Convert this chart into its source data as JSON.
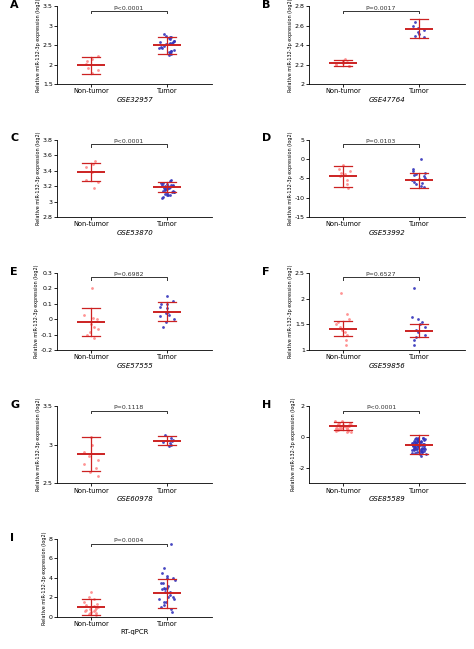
{
  "panels": [
    {
      "label": "A",
      "dataset": "GSE32957",
      "pvalue": "P<0.0001",
      "xlabel_left": "Non-tumor",
      "xlabel_right": "Tumor",
      "ylabel": "Relative miR-132-3p expression (log2)",
      "ylim": [
        1.5,
        3.5
      ],
      "yticks": [
        1.5,
        2.0,
        2.5,
        3.0,
        3.5
      ],
      "non_tumor_mean": 1.98,
      "non_tumor_sd": 0.22,
      "tumor_mean": 2.5,
      "tumor_sd": 0.22,
      "non_tumor_pts": [
        1.85,
        1.92,
        2.02,
        2.08,
        2.15,
        1.78,
        2.22
      ],
      "tumor_pts": [
        2.25,
        2.28,
        2.32,
        2.35,
        2.38,
        2.42,
        2.45,
        2.48,
        2.52,
        2.55,
        2.58,
        2.62,
        2.65,
        2.68,
        2.72,
        2.75,
        2.78,
        2.52,
        2.3,
        2.6,
        2.55,
        2.7,
        2.42,
        2.58,
        2.35
      ]
    },
    {
      "label": "B",
      "dataset": "GSE47764",
      "pvalue": "P=0.0017",
      "xlabel_left": "Non-tumor",
      "xlabel_right": "Tumor",
      "ylabel": "Relative miR-132-3p expression (log2)",
      "ylim": [
        2.0,
        2.8
      ],
      "yticks": [
        2.0,
        2.2,
        2.4,
        2.6,
        2.8
      ],
      "non_tumor_mean": 2.22,
      "non_tumor_sd": 0.03,
      "tumor_mean": 2.57,
      "tumor_sd": 0.1,
      "non_tumor_pts": [
        2.18,
        2.2,
        2.22,
        2.24,
        2.26,
        2.21,
        2.19,
        2.23
      ],
      "tumor_pts": [
        2.48,
        2.52,
        2.56,
        2.6,
        2.64,
        2.5,
        2.58,
        2.54
      ]
    },
    {
      "label": "C",
      "dataset": "GSE53870",
      "pvalue": "P<0.0001",
      "xlabel_left": "Non-tumor",
      "xlabel_right": "Tumor",
      "ylabel": "Relative miR-132-3p expression (log2)",
      "ylim": [
        2.8,
        3.8
      ],
      "yticks": [
        2.8,
        3.0,
        3.2,
        3.4,
        3.6,
        3.8
      ],
      "non_tumor_mean": 3.38,
      "non_tumor_sd": 0.12,
      "tumor_mean": 3.19,
      "tumor_sd": 0.06,
      "non_tumor_pts": [
        3.18,
        3.28,
        3.38,
        3.45,
        3.52,
        3.25,
        3.48
      ],
      "tumor_pts": [
        3.05,
        3.08,
        3.1,
        3.12,
        3.14,
        3.16,
        3.18,
        3.2,
        3.22,
        3.24,
        3.26,
        3.28,
        3.09,
        3.13,
        3.17,
        3.21,
        3.11,
        3.15,
        3.19,
        3.23,
        3.06,
        3.14,
        3.22,
        3.16,
        3.2,
        3.12,
        3.18,
        3.24,
        3.08,
        3.2
      ]
    },
    {
      "label": "D",
      "dataset": "GSE53992",
      "pvalue": "P=0.0103",
      "xlabel_left": "Non-tumor",
      "xlabel_right": "Tumor",
      "ylabel": "Relative miR-132-3p expression (log2)",
      "ylim": [
        -15,
        5
      ],
      "yticks": [
        -15,
        -10,
        -5,
        0,
        5
      ],
      "non_tumor_mean": -4.5,
      "non_tumor_sd": 2.8,
      "tumor_mean": -5.5,
      "tumor_sd": 2.0,
      "non_tumor_pts": [
        -1.5,
        -2.5,
        -3.5,
        -4.0,
        -4.5,
        -5.5,
        -6.5,
        -7.5,
        -3.0
      ],
      "tumor_pts": [
        -2.5,
        -3.5,
        -4.0,
        -4.5,
        -5.0,
        -5.5,
        -6.0,
        -6.5,
        -7.0,
        -3.0,
        -4.2,
        -5.2,
        -6.2,
        -7.2,
        0.0
      ]
    },
    {
      "label": "E",
      "dataset": "GSE57555",
      "pvalue": "P=0.6982",
      "xlabel_left": "Non-tumor",
      "xlabel_right": "Tumor",
      "ylabel": "Relative miR-132-3p expression (log2)",
      "ylim": [
        -0.2,
        0.3
      ],
      "yticks": [
        -0.2,
        -0.1,
        0.0,
        0.1,
        0.2,
        0.3
      ],
      "non_tumor_mean": -0.02,
      "non_tumor_sd": 0.09,
      "tumor_mean": 0.05,
      "tumor_sd": 0.06,
      "non_tumor_pts": [
        0.2,
        -0.05,
        -0.1,
        0.0,
        -0.08,
        0.03,
        -0.06,
        0.01,
        -0.03,
        -0.12
      ],
      "tumor_pts": [
        0.15,
        0.12,
        0.1,
        0.08,
        0.05,
        0.03,
        0.0,
        -0.02,
        -0.05,
        0.1,
        0.07,
        0.04,
        0.02
      ]
    },
    {
      "label": "F",
      "dataset": "GSE59856",
      "pvalue": "P=0.6527",
      "xlabel_left": "Non-tumor",
      "xlabel_right": "Tumor",
      "ylabel": "Relative miR-132-3p expression (log2)",
      "ylim": [
        1.0,
        2.5
      ],
      "yticks": [
        1.0,
        1.5,
        2.0,
        2.5
      ],
      "non_tumor_mean": 1.42,
      "non_tumor_sd": 0.15,
      "tumor_mean": 1.38,
      "tumor_sd": 0.12,
      "non_tumor_pts": [
        1.1,
        1.2,
        1.3,
        1.4,
        1.5,
        1.6,
        1.7,
        1.55,
        1.45,
        1.35,
        2.1
      ],
      "tumor_pts": [
        1.1,
        1.2,
        1.3,
        1.4,
        1.5,
        1.6,
        1.35,
        1.45,
        1.55,
        1.25,
        1.65,
        2.2
      ]
    },
    {
      "label": "G",
      "dataset": "GSE60978",
      "pvalue": "P=0.1118",
      "xlabel_left": "Non-tumor",
      "xlabel_right": "Tumor",
      "ylabel": "Relative miR-132-3p expression (log2)",
      "ylim": [
        2.5,
        3.5
      ],
      "yticks": [
        2.5,
        3.0,
        3.5
      ],
      "non_tumor_mean": 2.88,
      "non_tumor_sd": 0.22,
      "tumor_mean": 3.05,
      "tumor_sd": 0.06,
      "non_tumor_pts": [
        2.6,
        2.7,
        2.8,
        2.9,
        3.0,
        3.1,
        2.75,
        2.85,
        2.65
      ],
      "tumor_pts": [
        2.98,
        3.02,
        3.05,
        3.08,
        3.12,
        3.0,
        3.06,
        3.03
      ]
    },
    {
      "label": "H",
      "dataset": "GSE85589",
      "pvalue": "P<0.0001",
      "xlabel_left": "Non-tumor",
      "xlabel_right": "Tumor",
      "ylabel": "Relative miR-132-3p expression (log2)",
      "ylim": [
        -3,
        2
      ],
      "yticks": [
        -2,
        0,
        2
      ],
      "non_tumor_mean": 0.7,
      "non_tumor_sd": 0.28,
      "tumor_mean": -0.5,
      "tumor_sd": 0.6,
      "non_tumor_pts": [
        0.3,
        0.4,
        0.5,
        0.6,
        0.7,
        0.8,
        0.9,
        1.0,
        0.55,
        0.65,
        0.75,
        0.85,
        0.45,
        0.35,
        0.55,
        0.65,
        0.75,
        0.5,
        0.6,
        0.7,
        0.8,
        0.4,
        0.6,
        0.8,
        0.9,
        1.0,
        0.5,
        0.7,
        0.45,
        0.55
      ],
      "tumor_pts": [
        -0.1,
        -0.2,
        -0.3,
        -0.4,
        -0.5,
        -0.6,
        -0.7,
        -0.8,
        -0.9,
        -1.0,
        -1.1,
        -1.2,
        -0.15,
        -0.35,
        -0.55,
        -0.75,
        -0.95,
        -0.25,
        -0.45,
        -0.65,
        -0.85,
        -0.05,
        -0.3,
        -0.6,
        -0.9,
        -0.2,
        -0.5,
        -0.8,
        -0.4,
        -0.7,
        -0.15,
        -0.55,
        -0.85,
        -1.05,
        -0.35,
        -0.65,
        -0.25,
        -0.75,
        -0.45,
        -0.95,
        -0.1,
        -0.5,
        -0.8,
        -1.1,
        -0.3,
        -0.7,
        -0.2,
        -0.6,
        -0.4,
        -1.0,
        -0.15,
        -0.45,
        -0.75,
        -1.05,
        -0.35,
        -0.65,
        -0.25,
        -0.55,
        -0.85,
        -0.05
      ]
    },
    {
      "label": "I",
      "dataset": "RT-qPCR",
      "pvalue": "P=0.0004",
      "xlabel_left": "Non-tumor",
      "xlabel_right": "Tumor",
      "ylabel": "Relative miR-132-3p expression (log2)",
      "ylim": [
        0,
        8
      ],
      "yticks": [
        0,
        2,
        4,
        6,
        8
      ],
      "non_tumor_mean": 1.0,
      "non_tumor_sd": 0.85,
      "tumor_mean": 2.4,
      "tumor_sd": 1.5,
      "non_tumor_pts": [
        0.2,
        0.3,
        0.4,
        0.5,
        0.6,
        0.7,
        0.8,
        0.9,
        1.0,
        1.2,
        1.5,
        1.8,
        2.0,
        0.35,
        0.65,
        0.95,
        1.3,
        0.55,
        0.85,
        1.1,
        2.5
      ],
      "tumor_pts": [
        0.5,
        0.8,
        1.0,
        1.2,
        1.5,
        1.8,
        2.0,
        2.2,
        2.5,
        2.8,
        3.0,
        3.2,
        3.5,
        3.8,
        4.0,
        4.2,
        4.5,
        5.0,
        7.5,
        1.5,
        2.5,
        3.5,
        2.0,
        3.0,
        4.0,
        1.8,
        2.8
      ]
    }
  ],
  "dot_color_non_tumor": "#FF8888",
  "dot_color_tumor": "#3333BB",
  "error_color": "#CC2222",
  "mean_line_color": "#CC2222",
  "pvalue_color": "#333333",
  "bg_color": "#FFFFFF"
}
